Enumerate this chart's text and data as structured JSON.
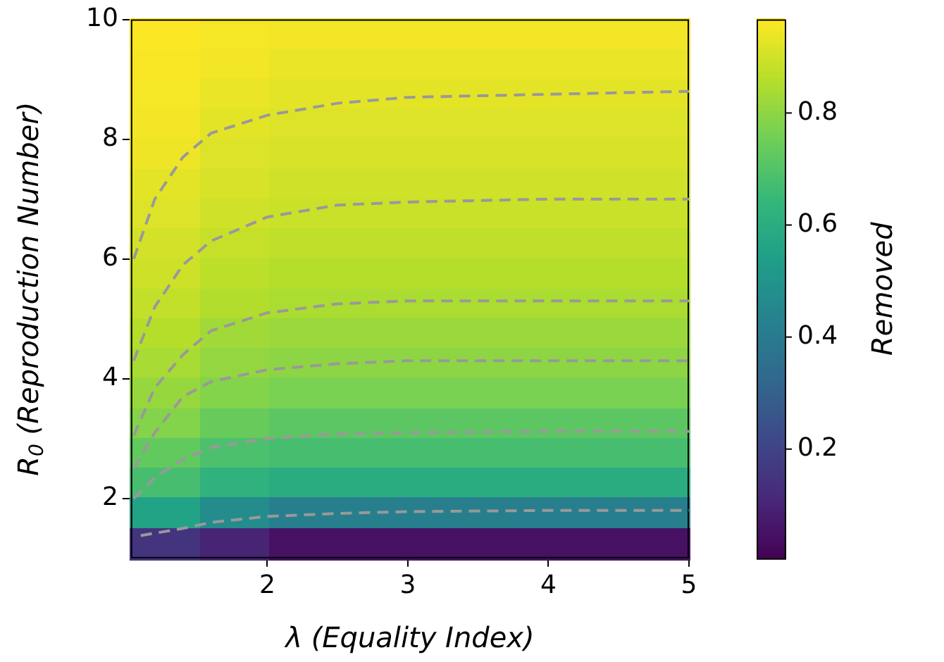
{
  "chart_data": {
    "type": "heatmap",
    "xlabel": "λ (Equality Index)",
    "ylabel": "R$_{0}$ (Reproduction Number)",
    "clabel": "Removed",
    "xlim": [
      1.03,
      5
    ],
    "xticks": [
      2,
      3,
      4,
      5
    ],
    "ylim": [
      1,
      10
    ],
    "yticks": [
      2,
      4,
      6,
      8,
      10
    ],
    "clim": [
      0.005,
      0.967
    ],
    "cticks": [
      0.2,
      0.4,
      0.6,
      0.8
    ],
    "cells": [
      [
        0.965,
        0.955,
        0.95,
        0.95,
        0.95,
        0.95,
        0.95,
        0.95
      ],
      [
        0.96,
        0.95,
        0.94,
        0.94,
        0.94,
        0.94,
        0.94,
        0.94
      ],
      [
        0.955,
        0.94,
        0.93,
        0.93,
        0.93,
        0.93,
        0.93,
        0.93
      ],
      [
        0.95,
        0.93,
        0.92,
        0.92,
        0.92,
        0.92,
        0.92,
        0.92
      ],
      [
        0.945,
        0.92,
        0.91,
        0.91,
        0.91,
        0.91,
        0.91,
        0.91
      ],
      [
        0.93,
        0.91,
        0.9,
        0.9,
        0.9,
        0.9,
        0.9,
        0.9
      ],
      [
        0.92,
        0.9,
        0.89,
        0.89,
        0.89,
        0.89,
        0.89,
        0.89
      ],
      [
        0.905,
        0.885,
        0.875,
        0.875,
        0.875,
        0.875,
        0.875,
        0.875
      ],
      [
        0.895,
        0.87,
        0.86,
        0.86,
        0.86,
        0.86,
        0.86,
        0.86
      ],
      [
        0.88,
        0.855,
        0.845,
        0.845,
        0.845,
        0.845,
        0.845,
        0.845
      ],
      [
        0.86,
        0.83,
        0.82,
        0.82,
        0.82,
        0.82,
        0.82,
        0.82
      ],
      [
        0.84,
        0.81,
        0.8,
        0.8,
        0.8,
        0.8,
        0.8,
        0.8
      ],
      [
        0.815,
        0.785,
        0.77,
        0.77,
        0.77,
        0.77,
        0.77,
        0.77
      ],
      [
        0.785,
        0.74,
        0.72,
        0.72,
        0.72,
        0.72,
        0.72,
        0.72
      ],
      [
        0.73,
        0.69,
        0.68,
        0.68,
        0.68,
        0.68,
        0.68,
        0.68
      ],
      [
        0.68,
        0.62,
        0.6,
        0.6,
        0.6,
        0.6,
        0.6,
        0.6
      ],
      [
        0.56,
        0.47,
        0.42,
        0.42,
        0.42,
        0.42,
        0.42,
        0.42
      ],
      [
        0.15,
        0.1,
        0.05,
        0.05,
        0.05,
        0.05,
        0.05,
        0.05
      ]
    ],
    "line_style": "dashed",
    "marker": "none",
    "grid": false,
    "legend": false,
    "series": [
      {
        "type": "line",
        "color": "#999999",
        "x": [
          1.05,
          1.2,
          1.4,
          1.6,
          2,
          2.5,
          3,
          4,
          5
        ],
        "values": [
          6.0,
          7.0,
          7.7,
          8.1,
          8.4,
          8.6,
          8.7,
          8.75,
          8.8
        ]
      },
      {
        "type": "line",
        "color": "#999999",
        "x": [
          1.05,
          1.2,
          1.4,
          1.6,
          2,
          2.5,
          3,
          4,
          5
        ],
        "values": [
          4.3,
          5.2,
          5.9,
          6.3,
          6.7,
          6.9,
          6.95,
          7.0,
          7.0
        ]
      },
      {
        "type": "line",
        "color": "#999999",
        "x": [
          1.05,
          1.2,
          1.4,
          1.6,
          2,
          2.5,
          3,
          4,
          5
        ],
        "values": [
          3.05,
          3.85,
          4.4,
          4.8,
          5.1,
          5.25,
          5.3,
          5.3,
          5.3
        ]
      },
      {
        "type": "line",
        "color": "#999999",
        "x": [
          1.05,
          1.2,
          1.4,
          1.6,
          2,
          2.5,
          3,
          4,
          5
        ],
        "values": [
          2.5,
          3.1,
          3.7,
          3.95,
          4.15,
          4.25,
          4.3,
          4.3,
          4.3
        ]
      },
      {
        "type": "line",
        "color": "#999999",
        "x": [
          1.05,
          1.2,
          1.4,
          1.6,
          2,
          2.5,
          3,
          4,
          5
        ],
        "values": [
          2.0,
          2.35,
          2.65,
          2.85,
          3.0,
          3.08,
          3.1,
          3.12,
          3.12
        ]
      },
      {
        "type": "line",
        "color": "#999999",
        "x": [
          1.1,
          1.4,
          1.6,
          2,
          2.5,
          3,
          4,
          5
        ],
        "values": [
          1.38,
          1.5,
          1.6,
          1.7,
          1.75,
          1.78,
          1.8,
          1.8
        ]
      }
    ]
  }
}
